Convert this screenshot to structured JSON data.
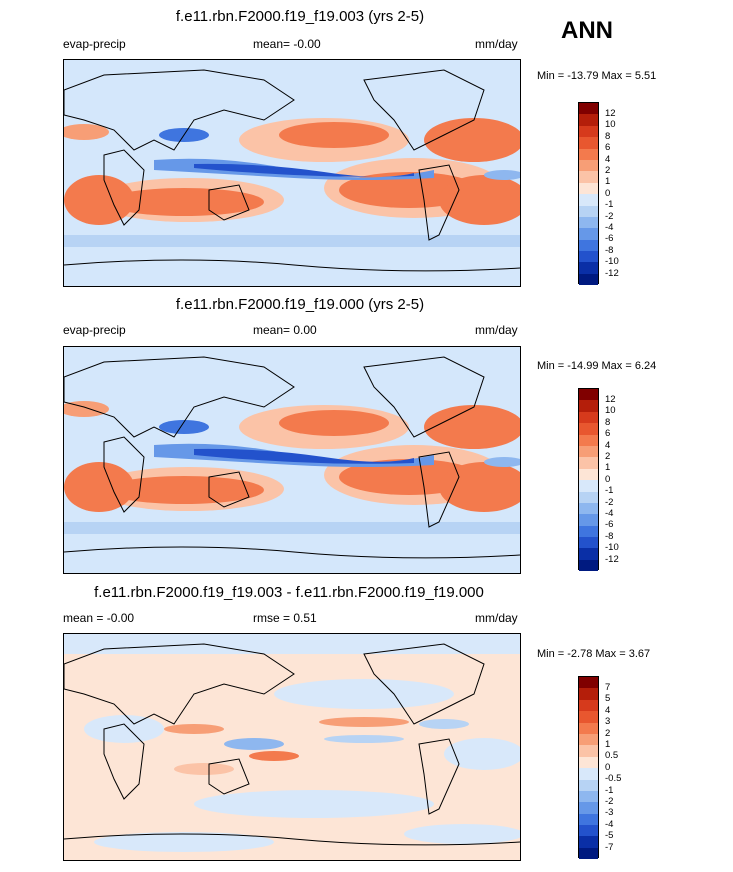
{
  "season": "ANN",
  "panels": [
    {
      "title": "f.e11.rbn.F2000.f19_f19.003 (yrs 2-5)",
      "left_label": "evap-precip",
      "mid_label": "mean=  -0.00",
      "units": "mm/day",
      "min_max": "Min = -13.79 Max =   5.51"
    },
    {
      "title": "f.e11.rbn.F2000.f19_f19.000 (yrs 2-5)",
      "left_label": "evap-precip",
      "mid_label": "mean=   0.00",
      "units": "mm/day",
      "min_max": "Min = -14.99 Max =   6.24"
    },
    {
      "title": "f.e11.rbn.F2000.f19_f19.003 - f.e11.rbn.F2000.f19_f19.000",
      "left_label": "mean =  -0.00",
      "mid_label": "rmse =   0.51",
      "units": "mm/day",
      "min_max": "Min =  -2.78 Max =   3.67"
    }
  ],
  "chart_data": [
    {
      "type": "heatmap",
      "title": "f.e11.rbn.F2000.f19_f19.003 (yrs 2-5)",
      "variable": "evap-precip",
      "units": "mm/day",
      "mean": -0.0,
      "min": -13.79,
      "max": 5.51,
      "colorbar_levels": [
        "12",
        "10",
        "8",
        "6",
        "4",
        "2",
        "1",
        "0",
        "-1",
        "-2",
        "-4",
        "-6",
        "-8",
        "-10",
        "-12"
      ],
      "colors": [
        "#800000",
        "#b41e0a",
        "#d63a1c",
        "#e8572f",
        "#f37a4d",
        "#f79e76",
        "#fbc3a7",
        "#fde5d6",
        "#d8e8fa",
        "#b7d3f4",
        "#8eb7ef",
        "#6698e8",
        "#3f75df",
        "#2352cc",
        "#0a2fa6",
        "#001a80"
      ]
    },
    {
      "type": "heatmap",
      "title": "f.e11.rbn.F2000.f19_f19.000 (yrs 2-5)",
      "variable": "evap-precip",
      "units": "mm/day",
      "mean": 0.0,
      "min": -14.99,
      "max": 6.24,
      "colorbar_levels": [
        "12",
        "10",
        "8",
        "6",
        "4",
        "2",
        "1",
        "0",
        "-1",
        "-2",
        "-4",
        "-6",
        "-8",
        "-10",
        "-12"
      ],
      "colors": [
        "#800000",
        "#b41e0a",
        "#d63a1c",
        "#e8572f",
        "#f37a4d",
        "#f79e76",
        "#fbc3a7",
        "#fde5d6",
        "#d8e8fa",
        "#b7d3f4",
        "#8eb7ef",
        "#6698e8",
        "#3f75df",
        "#2352cc",
        "#0a2fa6",
        "#001a80"
      ]
    },
    {
      "type": "heatmap",
      "title": "f.e11.rbn.F2000.f19_f19.003 - f.e11.rbn.F2000.f19_f19.000",
      "units": "mm/day",
      "mean": -0.0,
      "rmse": 0.51,
      "min": -2.78,
      "max": 3.67,
      "colorbar_levels": [
        "7",
        "5",
        "4",
        "3",
        "2",
        "1",
        "0.5",
        "0",
        "-0.5",
        "-1",
        "-2",
        "-3",
        "-4",
        "-5",
        "-7"
      ],
      "colors": [
        "#800000",
        "#b41e0a",
        "#d63a1c",
        "#e8572f",
        "#f37a4d",
        "#f79e76",
        "#fbc3a7",
        "#fde5d6",
        "#d8e8fa",
        "#b7d3f4",
        "#8eb7ef",
        "#6698e8",
        "#3f75df",
        "#2352cc",
        "#0a2fa6",
        "#001a80"
      ]
    }
  ]
}
